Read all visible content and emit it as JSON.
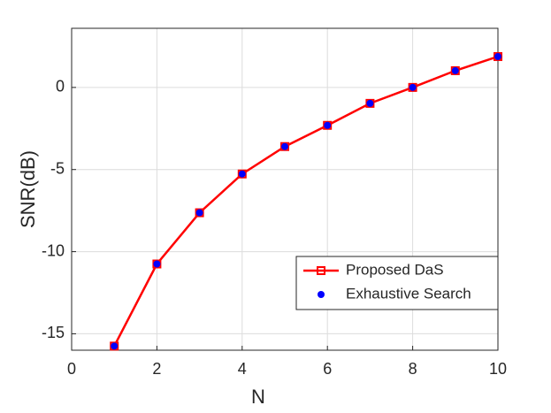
{
  "chart_data": {
    "type": "line",
    "xlabel": "N",
    "ylabel": "SNR(dB)",
    "x": [
      1,
      2,
      3,
      4,
      5,
      6,
      7,
      8,
      9,
      10
    ],
    "series": [
      {
        "name": "Proposed DaS",
        "color": "#ff0000",
        "marker": "square",
        "linestyle": "-",
        "values": [
          -15.75,
          -10.75,
          -7.63,
          -5.27,
          -3.6,
          -2.31,
          -0.97,
          0,
          1.02,
          1.88
        ]
      },
      {
        "name": "Exhaustive Search",
        "color": "#0000ff",
        "marker": "circle",
        "linestyle": "none",
        "values": [
          -15.75,
          -10.75,
          -7.63,
          -5.27,
          -3.6,
          -2.31,
          -0.97,
          0,
          1.02,
          1.88
        ]
      }
    ],
    "xlim": [
      0,
      10
    ],
    "xticks": [
      0,
      2,
      4,
      6,
      8,
      10
    ],
    "ylim": [
      -16,
      3.6
    ],
    "yticks": [
      -15,
      -10,
      -5,
      0
    ],
    "grid": true,
    "legend": "lower right"
  }
}
